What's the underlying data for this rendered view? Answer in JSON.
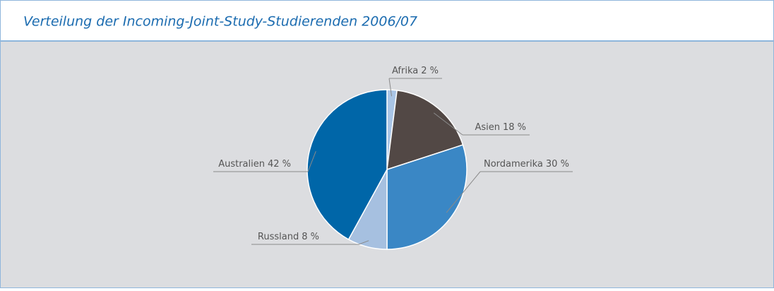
{
  "chart_data": {
    "type": "pie",
    "title": "Verteilung der Incoming-Joint-Study-Studierenden 2006/07",
    "categories": [
      "Afrika",
      "Asien",
      "Nordamerika",
      "Russland",
      "Australien"
    ],
    "values": [
      2,
      18,
      30,
      8,
      42
    ],
    "value_labels": [
      "2 %",
      "18 %",
      "30 %",
      "8 %",
      "42 %"
    ],
    "colors": [
      "#a9c5e6",
      "#524845",
      "#3a87c5",
      "#a6c0e0",
      "#0066a8"
    ]
  }
}
